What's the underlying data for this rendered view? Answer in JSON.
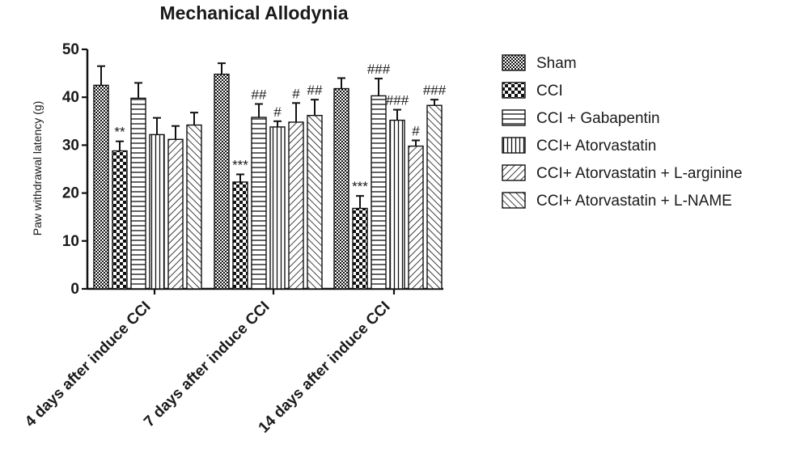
{
  "chart_data": {
    "type": "bar",
    "title": "Mechanical Allodynia",
    "ylabel": "Paw withdrawal latency (g)",
    "xlabel": "",
    "ylim": [
      0,
      50
    ],
    "yticks": [
      0,
      10,
      20,
      30,
      40,
      50
    ],
    "categories": [
      "4 days after induce CCI",
      "7 days after induce CCI",
      "14 days after induce CCI"
    ],
    "legend_position": "right",
    "grid": false,
    "series": [
      {
        "name": "Sham",
        "pattern": "checker-fine",
        "values": [
          42.5,
          44.8,
          41.8
        ],
        "errors": [
          4.0,
          2.3,
          2.2
        ],
        "annotations": [
          "",
          "",
          ""
        ]
      },
      {
        "name": "CCI",
        "pattern": "checker-coarse",
        "values": [
          28.8,
          22.3,
          16.8
        ],
        "errors": [
          2.0,
          1.6,
          2.6
        ],
        "annotations": [
          "**",
          "***",
          "***"
        ]
      },
      {
        "name": "CCI + Gabapentin",
        "pattern": "horizontal-lines",
        "values": [
          39.8,
          35.8,
          40.3
        ],
        "errors": [
          3.2,
          2.8,
          3.6
        ],
        "annotations": [
          "",
          "##",
          "###"
        ]
      },
      {
        "name": "CCI+ Atorvastatin",
        "pattern": "vertical-lines",
        "values": [
          32.2,
          33.8,
          35.2
        ],
        "errors": [
          3.5,
          1.2,
          2.2
        ],
        "annotations": [
          "",
          "#",
          "###"
        ]
      },
      {
        "name": "CCI+ Atorvastatin + L-arginine",
        "pattern": "diagonal-up",
        "values": [
          31.2,
          34.8,
          29.8
        ],
        "errors": [
          2.8,
          4.0,
          1.2
        ],
        "annotations": [
          "",
          "#",
          "#"
        ]
      },
      {
        "name": "CCI+ Atorvastatin + L-NAME",
        "pattern": "diagonal-down",
        "values": [
          34.2,
          36.2,
          38.3
        ],
        "errors": [
          2.6,
          3.3,
          1.2
        ],
        "annotations": [
          "",
          "##",
          "###"
        ]
      }
    ]
  }
}
